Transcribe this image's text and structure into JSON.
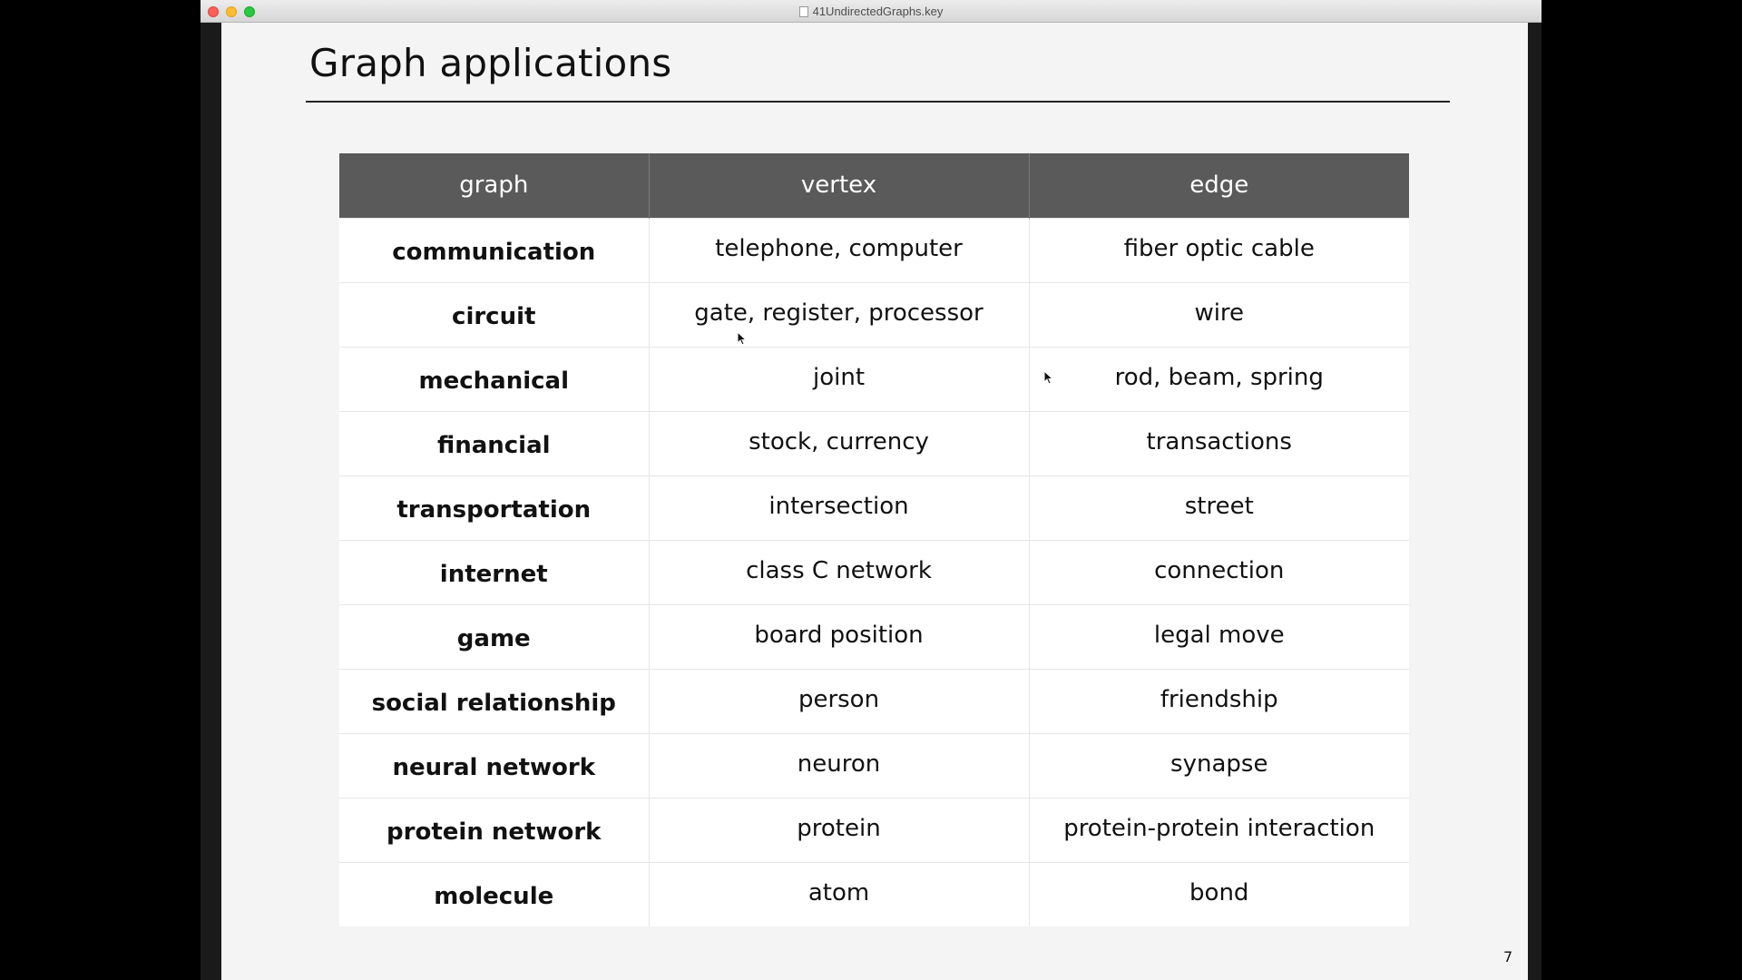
{
  "window": {
    "title": "41UndirectedGraphs.key"
  },
  "slide": {
    "title": "Graph applications",
    "page_number": "7",
    "table": {
      "headers": [
        "graph",
        "vertex",
        "edge"
      ],
      "rows": [
        [
          "communication",
          "telephone, computer",
          "fiber optic cable"
        ],
        [
          "circuit",
          "gate, register, processor",
          "wire"
        ],
        [
          "mechanical",
          "joint",
          "rod, beam, spring"
        ],
        [
          "financial",
          "stock, currency",
          "transactions"
        ],
        [
          "transportation",
          "intersection",
          "street"
        ],
        [
          "internet",
          "class C network",
          "connection"
        ],
        [
          "game",
          "board position",
          "legal move"
        ],
        [
          "social relationship",
          "person",
          "friendship"
        ],
        [
          "neural network",
          "neuron",
          "synapse"
        ],
        [
          "protein network",
          "protein",
          "protein-protein interaction"
        ],
        [
          "molecule",
          "atom",
          "bond"
        ]
      ]
    }
  },
  "colors": {
    "header_bg": "#5a5a5a",
    "slide_bg": "#f4f4f4",
    "close": "#fe5f57",
    "minimize": "#febc2e",
    "maximize": "#28c840"
  }
}
